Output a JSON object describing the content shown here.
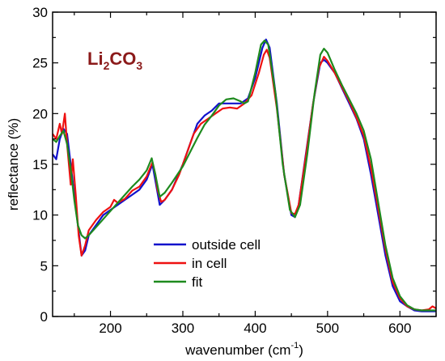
{
  "chart_data": {
    "type": "line",
    "xlabel": "wavenumber (cm",
    "xlabel_sup": "-1",
    "xlabel_suffix": ")",
    "ylabel": "reflectance (%)",
    "xlim": [
      120,
      650
    ],
    "ylim": [
      0,
      30
    ],
    "xticks": [
      200,
      300,
      400,
      500,
      600
    ],
    "yticks": [
      0,
      5,
      10,
      15,
      20,
      25,
      30
    ],
    "annotation": {
      "base1": "Li",
      "sub1": "2",
      "base2": "CO",
      "sub2": "3"
    },
    "legend_position": "lower-center",
    "series": [
      {
        "name": "outside cell",
        "color": "#1111cc",
        "points": [
          [
            120,
            16
          ],
          [
            125,
            15.5
          ],
          [
            130,
            17.5
          ],
          [
            135,
            18.5
          ],
          [
            140,
            18
          ],
          [
            145,
            15
          ],
          [
            150,
            12
          ],
          [
            155,
            9
          ],
          [
            160,
            6
          ],
          [
            165,
            6.5
          ],
          [
            170,
            8
          ],
          [
            180,
            9
          ],
          [
            190,
            10
          ],
          [
            200,
            10.5
          ],
          [
            210,
            11
          ],
          [
            220,
            11.5
          ],
          [
            230,
            12
          ],
          [
            240,
            12.5
          ],
          [
            250,
            13.5
          ],
          [
            258,
            15
          ],
          [
            263,
            13
          ],
          [
            268,
            11
          ],
          [
            275,
            11.5
          ],
          [
            285,
            12.5
          ],
          [
            300,
            15
          ],
          [
            310,
            17
          ],
          [
            320,
            19
          ],
          [
            330,
            19.8
          ],
          [
            340,
            20.3
          ],
          [
            350,
            21
          ],
          [
            360,
            21
          ],
          [
            370,
            21
          ],
          [
            380,
            21
          ],
          [
            390,
            21.5
          ],
          [
            400,
            23.5
          ],
          [
            410,
            26.5
          ],
          [
            415,
            27.3
          ],
          [
            420,
            26.5
          ],
          [
            430,
            21
          ],
          [
            440,
            14
          ],
          [
            450,
            10
          ],
          [
            455,
            9.8
          ],
          [
            460,
            11
          ],
          [
            470,
            16
          ],
          [
            480,
            21
          ],
          [
            490,
            25
          ],
          [
            495,
            25.3
          ],
          [
            500,
            25
          ],
          [
            510,
            24
          ],
          [
            520,
            22.5
          ],
          [
            530,
            21
          ],
          [
            540,
            19.5
          ],
          [
            550,
            17.5
          ],
          [
            560,
            14
          ],
          [
            570,
            10
          ],
          [
            580,
            6
          ],
          [
            590,
            3
          ],
          [
            600,
            1.5
          ],
          [
            610,
            1
          ],
          [
            620,
            0.6
          ],
          [
            630,
            0.5
          ],
          [
            640,
            0.5
          ],
          [
            650,
            0.5
          ]
        ]
      },
      {
        "name": "in cell",
        "color": "#ee1111",
        "points": [
          [
            120,
            18
          ],
          [
            125,
            17.5
          ],
          [
            130,
            19
          ],
          [
            133,
            18
          ],
          [
            137,
            20
          ],
          [
            140,
            17
          ],
          [
            145,
            13
          ],
          [
            148,
            15.5
          ],
          [
            152,
            12
          ],
          [
            156,
            8
          ],
          [
            160,
            6
          ],
          [
            165,
            7
          ],
          [
            170,
            8.5
          ],
          [
            180,
            9.5
          ],
          [
            190,
            10.3
          ],
          [
            200,
            10.8
          ],
          [
            205,
            11.5
          ],
          [
            210,
            11.2
          ],
          [
            220,
            11.6
          ],
          [
            230,
            12.4
          ],
          [
            240,
            12.8
          ],
          [
            250,
            13.8
          ],
          [
            258,
            15.2
          ],
          [
            262,
            14
          ],
          [
            265,
            12.5
          ],
          [
            270,
            11.3
          ],
          [
            275,
            11.5
          ],
          [
            285,
            12.5
          ],
          [
            295,
            14
          ],
          [
            305,
            16
          ],
          [
            315,
            18
          ],
          [
            325,
            19
          ],
          [
            335,
            19.5
          ],
          [
            345,
            20
          ],
          [
            355,
            20.5
          ],
          [
            365,
            20.6
          ],
          [
            375,
            20.5
          ],
          [
            385,
            21
          ],
          [
            395,
            21.8
          ],
          [
            405,
            24
          ],
          [
            412,
            25.8
          ],
          [
            416,
            26.3
          ],
          [
            420,
            25.5
          ],
          [
            430,
            20.5
          ],
          [
            440,
            14
          ],
          [
            450,
            10.2
          ],
          [
            455,
            10.1
          ],
          [
            460,
            11
          ],
          [
            470,
            15.8
          ],
          [
            480,
            21
          ],
          [
            488,
            24.5
          ],
          [
            495,
            25.6
          ],
          [
            500,
            25.2
          ],
          [
            510,
            24
          ],
          [
            520,
            22.6
          ],
          [
            530,
            21.2
          ],
          [
            540,
            19.6
          ],
          [
            550,
            17.8
          ],
          [
            560,
            14.6
          ],
          [
            570,
            10.6
          ],
          [
            580,
            6.6
          ],
          [
            590,
            3.4
          ],
          [
            600,
            1.8
          ],
          [
            610,
            1
          ],
          [
            620,
            0.7
          ],
          [
            630,
            0.6
          ],
          [
            640,
            0.7
          ],
          [
            645,
            1
          ],
          [
            650,
            0.8
          ]
        ]
      },
      {
        "name": "fit",
        "color": "#1e8a1e",
        "points": [
          [
            120,
            17.5
          ],
          [
            125,
            17.2
          ],
          [
            130,
            17.8
          ],
          [
            135,
            18.3
          ],
          [
            140,
            17
          ],
          [
            145,
            14.5
          ],
          [
            150,
            11.5
          ],
          [
            155,
            9
          ],
          [
            160,
            8
          ],
          [
            165,
            7.7
          ],
          [
            170,
            8
          ],
          [
            180,
            8.8
          ],
          [
            190,
            9.6
          ],
          [
            200,
            10.4
          ],
          [
            210,
            11.2
          ],
          [
            220,
            12
          ],
          [
            230,
            12.8
          ],
          [
            240,
            13.5
          ],
          [
            250,
            14.4
          ],
          [
            257,
            15.6
          ],
          [
            262,
            14
          ],
          [
            268,
            11.8
          ],
          [
            275,
            12.2
          ],
          [
            285,
            13.2
          ],
          [
            300,
            14.8
          ],
          [
            310,
            16.2
          ],
          [
            320,
            17.6
          ],
          [
            330,
            18.9
          ],
          [
            340,
            19.8
          ],
          [
            350,
            20.8
          ],
          [
            360,
            21.4
          ],
          [
            370,
            21.5
          ],
          [
            380,
            21.2
          ],
          [
            385,
            21
          ],
          [
            390,
            21.2
          ],
          [
            400,
            24
          ],
          [
            408,
            26.8
          ],
          [
            413,
            27.2
          ],
          [
            418,
            26.8
          ],
          [
            428,
            22
          ],
          [
            438,
            15
          ],
          [
            448,
            10.5
          ],
          [
            455,
            9.8
          ],
          [
            462,
            11
          ],
          [
            472,
            16
          ],
          [
            482,
            22
          ],
          [
            490,
            25.8
          ],
          [
            495,
            26.4
          ],
          [
            500,
            26
          ],
          [
            510,
            24.3
          ],
          [
            520,
            22.8
          ],
          [
            530,
            21.4
          ],
          [
            540,
            20
          ],
          [
            550,
            18.3
          ],
          [
            560,
            15.5
          ],
          [
            570,
            11.2
          ],
          [
            580,
            7
          ],
          [
            590,
            3.8
          ],
          [
            600,
            2
          ],
          [
            610,
            1.1
          ],
          [
            620,
            0.7
          ],
          [
            630,
            0.6
          ],
          [
            640,
            0.6
          ],
          [
            650,
            0.6
          ]
        ]
      }
    ]
  }
}
